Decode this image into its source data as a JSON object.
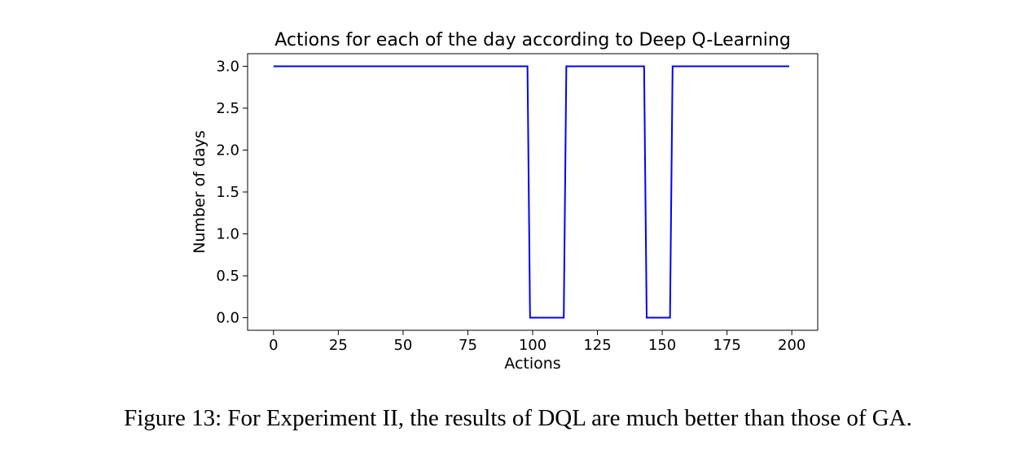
{
  "chart_data": {
    "type": "line",
    "title": "Actions for each of the day according to Deep Q-Learning",
    "xlabel": "Actions",
    "ylabel": "Number of days",
    "xlim": [
      -10,
      210
    ],
    "ylim": [
      -0.15,
      3.15
    ],
    "xticks": [
      0,
      25,
      50,
      75,
      100,
      125,
      150,
      175,
      200
    ],
    "xtick_labels": [
      "0",
      "25",
      "50",
      "75",
      "100",
      "125",
      "150",
      "175",
      "200"
    ],
    "yticks": [
      0.0,
      0.5,
      1.0,
      1.5,
      2.0,
      2.5,
      3.0
    ],
    "ytick_labels": [
      "0.0",
      "0.5",
      "1.0",
      "1.5",
      "2.0",
      "2.5",
      "3.0"
    ],
    "grid": false,
    "series": [
      {
        "color": "#0000ff",
        "x": [
          0,
          98,
          99,
          112,
          113,
          143,
          144,
          153,
          154,
          199
        ],
        "y": [
          3,
          3,
          0,
          0,
          3,
          3,
          0,
          0,
          3,
          3
        ]
      }
    ]
  },
  "caption": "Figure 13: For Experiment II, the results of DQL are much better than those of GA."
}
